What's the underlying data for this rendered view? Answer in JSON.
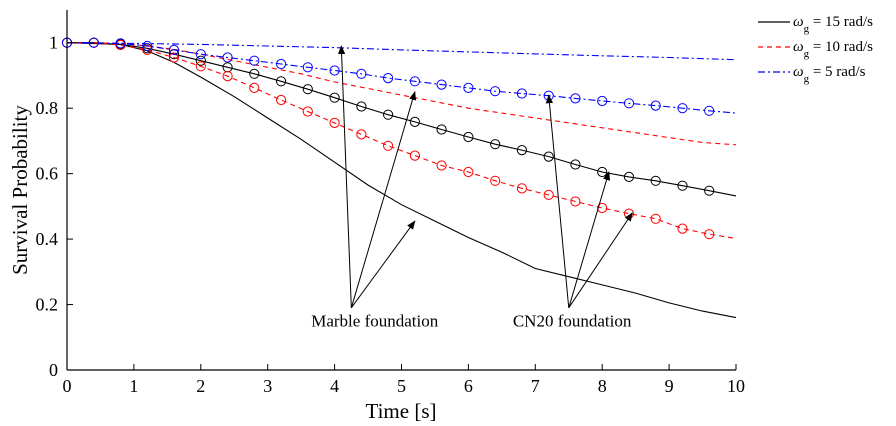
{
  "chart_data": {
    "type": "line",
    "xlabel": "Time [s]",
    "ylabel": "Survival Probability",
    "xlim": [
      0,
      10
    ],
    "ylim": [
      0,
      1.1
    ],
    "xticks": [
      "0",
      "1",
      "2",
      "3",
      "4",
      "5",
      "6",
      "7",
      "8",
      "9",
      "10"
    ],
    "yticks": [
      "0",
      "0.2",
      "0.4",
      "0.6",
      "0.8",
      "1"
    ],
    "grid": false,
    "legend_position": "top-right",
    "legend": [
      {
        "symbol": "ω",
        "sub": "g",
        "text": "= 15 rad/s",
        "color": "#000000",
        "dash": "solid"
      },
      {
        "symbol": "ω",
        "sub": "g",
        "text": "= 10 rad/s",
        "color": "#ff0000",
        "dash": "dashed"
      },
      {
        "symbol": "ω",
        "sub": "g",
        "text": "= 5 rad/s",
        "color": "#0000ff",
        "dash": "dashdot"
      }
    ],
    "series": [
      {
        "key": "black-marble",
        "color": "#000000",
        "dash": "solid",
        "marker": false,
        "x": [
          0,
          0.8,
          1.2,
          1.6,
          2,
          2.5,
          3,
          3.5,
          4,
          4.5,
          5,
          5.5,
          6,
          6.5,
          7,
          7.5,
          8,
          8.5,
          9,
          9.5,
          10
        ],
        "y": [
          1.0,
          0.995,
          0.975,
          0.94,
          0.895,
          0.835,
          0.77,
          0.705,
          0.635,
          0.565,
          0.505,
          0.455,
          0.405,
          0.36,
          0.31,
          0.285,
          0.26,
          0.235,
          0.205,
          0.18,
          0.16
        ]
      },
      {
        "key": "black-cn20",
        "color": "#000000",
        "dash": "solid",
        "marker": true,
        "x": [
          0,
          0.4,
          0.8,
          1.2,
          1.6,
          2,
          2.4,
          2.8,
          3.2,
          3.6,
          4,
          4.4,
          4.8,
          5.2,
          5.6,
          6,
          6.4,
          6.8,
          7.2,
          7.6,
          8,
          8.4,
          8.8,
          9.2,
          9.6,
          10
        ],
        "y": [
          1.0,
          1.0,
          0.995,
          0.983,
          0.965,
          0.945,
          0.925,
          0.905,
          0.882,
          0.858,
          0.832,
          0.805,
          0.78,
          0.758,
          0.735,
          0.712,
          0.69,
          0.672,
          0.652,
          0.628,
          0.605,
          0.59,
          0.578,
          0.563,
          0.548,
          0.532
        ],
        "marker_x": [
          0,
          0.4,
          0.8,
          1.2,
          1.6,
          2,
          2.4,
          2.8,
          3.2,
          3.6,
          4,
          4.4,
          4.8,
          5.2,
          5.6,
          6,
          6.4,
          6.8,
          7.2,
          7.6,
          8,
          8.4,
          8.8,
          9.2,
          9.6
        ]
      },
      {
        "key": "red-marble",
        "color": "#ff0000",
        "dash": "dashed",
        "marker": false,
        "x": [
          0,
          0.8,
          1.2,
          1.6,
          2,
          2.5,
          3,
          3.5,
          4,
          4.5,
          5,
          5.5,
          6,
          6.5,
          7,
          7.5,
          8,
          8.5,
          9,
          9.5,
          10
        ],
        "y": [
          1.0,
          0.998,
          0.99,
          0.98,
          0.965,
          0.945,
          0.925,
          0.905,
          0.88,
          0.86,
          0.84,
          0.82,
          0.8,
          0.785,
          0.77,
          0.755,
          0.74,
          0.725,
          0.71,
          0.695,
          0.688
        ]
      },
      {
        "key": "red-cn20",
        "color": "#ff0000",
        "dash": "dashed",
        "marker": true,
        "x": [
          0,
          0.4,
          0.8,
          1.2,
          1.6,
          2,
          2.4,
          2.8,
          3.2,
          3.6,
          4,
          4.4,
          4.8,
          5.2,
          5.6,
          6,
          6.4,
          6.8,
          7.2,
          7.6,
          8,
          8.4,
          8.8,
          9.2,
          9.6,
          10
        ],
        "y": [
          1.0,
          1.0,
          0.993,
          0.978,
          0.955,
          0.928,
          0.898,
          0.862,
          0.825,
          0.79,
          0.755,
          0.72,
          0.685,
          0.655,
          0.625,
          0.605,
          0.578,
          0.555,
          0.535,
          0.515,
          0.495,
          0.478,
          0.462,
          0.432,
          0.415,
          0.402
        ],
        "marker_x": [
          0,
          0.4,
          0.8,
          1.2,
          1.6,
          2,
          2.4,
          2.8,
          3.2,
          3.6,
          4,
          4.4,
          4.8,
          5.2,
          5.6,
          6,
          6.4,
          6.8,
          7.2,
          7.6,
          8,
          8.4,
          8.8,
          9.2,
          9.6
        ]
      },
      {
        "key": "blue-marble",
        "color": "#0000ff",
        "dash": "dashdot",
        "marker": false,
        "x": [
          0,
          1,
          2,
          3,
          4,
          5,
          6,
          7,
          8,
          9,
          10
        ],
        "y": [
          1.0,
          0.998,
          0.995,
          0.99,
          0.985,
          0.978,
          0.972,
          0.966,
          0.96,
          0.955,
          0.948
        ]
      },
      {
        "key": "blue-cn20",
        "color": "#0000ff",
        "dash": "dashdot",
        "marker": true,
        "x": [
          0,
          0.4,
          0.8,
          1.2,
          1.6,
          2,
          2.4,
          2.8,
          3.2,
          3.6,
          4,
          4.4,
          4.8,
          5.2,
          5.6,
          6,
          6.4,
          6.8,
          7.2,
          7.6,
          8,
          8.4,
          8.8,
          9.2,
          9.6,
          10
        ],
        "y": [
          1.0,
          1.0,
          0.998,
          0.99,
          0.978,
          0.965,
          0.955,
          0.945,
          0.935,
          0.925,
          0.915,
          0.905,
          0.892,
          0.882,
          0.872,
          0.862,
          0.852,
          0.845,
          0.838,
          0.83,
          0.822,
          0.815,
          0.808,
          0.8,
          0.792,
          0.785
        ],
        "marker_x": [
          0,
          0.4,
          0.8,
          1.2,
          1.6,
          2,
          2.4,
          2.8,
          3.2,
          3.6,
          4,
          4.4,
          4.8,
          5.2,
          5.6,
          6,
          6.4,
          6.8,
          7.2,
          7.6,
          8,
          8.4,
          8.8,
          9.2,
          9.6
        ]
      }
    ],
    "annotations": [
      {
        "key": "marble",
        "text": "Marble foundation",
        "label_x": 4.6,
        "label_y": 0.2,
        "origin_x": 4.25,
        "origin_y": 0.19,
        "targets": [
          [
            4.1,
            0.99
          ],
          [
            5.2,
            0.85
          ],
          [
            5.2,
            0.455
          ]
        ]
      },
      {
        "key": "cn20",
        "text": "CN20 foundation",
        "label_x": 7.55,
        "label_y": 0.2,
        "origin_x": 7.5,
        "origin_y": 0.19,
        "targets": [
          [
            7.2,
            0.84
          ],
          [
            8.1,
            0.605
          ],
          [
            8.45,
            0.48
          ]
        ]
      }
    ]
  }
}
